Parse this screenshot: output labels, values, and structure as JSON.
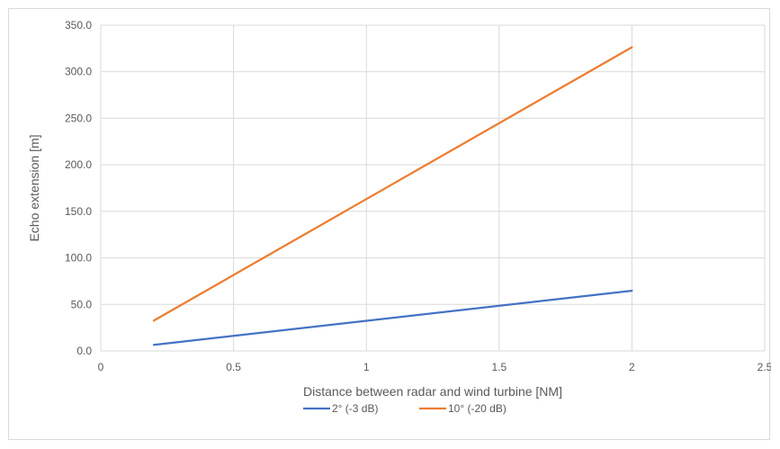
{
  "chart_data": {
    "type": "line",
    "title": "",
    "xlabel": "Distance between radar and wind turbine [NM]",
    "ylabel": "Echo extension [m]",
    "xlim": [
      0,
      2.5
    ],
    "ylim": [
      0,
      350
    ],
    "x_ticks": [
      "0",
      "0.5",
      "1",
      "1.5",
      "2",
      "2.5"
    ],
    "x_tick_values": [
      0,
      0.5,
      1,
      1.5,
      2,
      2.5
    ],
    "y_ticks": [
      "0.0",
      "50.0",
      "100.0",
      "150.0",
      "200.0",
      "250.0",
      "300.0",
      "350.0"
    ],
    "y_tick_values": [
      0,
      50,
      100,
      150,
      200,
      250,
      300,
      350
    ],
    "grid": true,
    "legend_position": "bottom",
    "series": [
      {
        "name": "2° (-3 dB)",
        "color": "#4472c4",
        "x": [
          0.2,
          2
        ],
        "y": [
          6.5,
          64.7
        ]
      },
      {
        "name": "10° (-20 dB)",
        "color": "#ed7d31",
        "x": [
          0.2,
          2
        ],
        "y": [
          32.6,
          326.3
        ]
      }
    ]
  }
}
